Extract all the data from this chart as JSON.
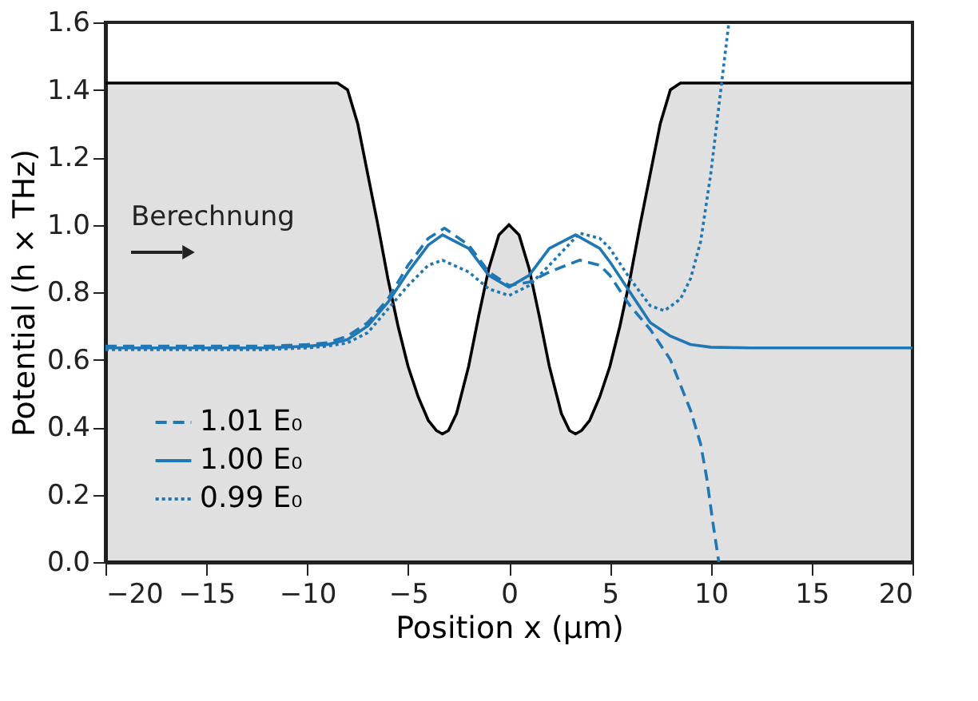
{
  "chart_data": {
    "type": "line",
    "xlabel": "Position x (µm)",
    "ylabel": "Potential (h × THz)",
    "xlim": [
      -20,
      20
    ],
    "ylim": [
      0,
      1.6
    ],
    "xticks": [
      {
        "value": -20,
        "label": "−20"
      },
      {
        "value": -15,
        "label": "−15"
      },
      {
        "value": -10,
        "label": "−10"
      },
      {
        "value": -5,
        "label": "−5"
      },
      0,
      5,
      10,
      15,
      20
    ],
    "yticks": [
      {
        "value": 0,
        "label": "0.0"
      },
      0.2,
      0.4,
      0.6,
      0.8,
      {
        "value": 1,
        "label": "1.0"
      },
      1.2,
      1.4,
      1.6
    ],
    "grid": false,
    "legend": "bottom left",
    "annotations": [
      "Berechnung"
    ],
    "series": [
      {
        "type": "area",
        "color": "#000000",
        "line_style": "solid",
        "x": [
          -20,
          -9,
          -8.5,
          -8,
          -7.5,
          -7,
          -6.5,
          -6,
          -5.5,
          -5,
          -4.5,
          -4,
          -3.6,
          -3.3,
          -3,
          -2.6,
          -2,
          -1.5,
          -1,
          -0.5,
          0,
          0.5,
          1,
          1.5,
          2,
          2.6,
          3,
          3.3,
          3.6,
          4,
          4.5,
          5,
          5.5,
          6,
          6.5,
          7,
          7.5,
          8,
          8.5,
          9,
          20
        ],
        "values": [
          1.42,
          1.42,
          1.42,
          1.4,
          1.3,
          1.15,
          1.0,
          0.84,
          0.7,
          0.58,
          0.49,
          0.42,
          0.39,
          0.38,
          0.39,
          0.44,
          0.58,
          0.73,
          0.87,
          0.97,
          1.0,
          0.97,
          0.87,
          0.73,
          0.58,
          0.44,
          0.39,
          0.38,
          0.39,
          0.42,
          0.49,
          0.58,
          0.7,
          0.84,
          1.0,
          1.15,
          1.3,
          1.4,
          1.42,
          1.42,
          1.42
        ]
      },
      {
        "name": "1.01 E₀",
        "color": "#1f77b4",
        "line_style": "dashed",
        "x": [
          -20,
          -12,
          -10,
          -9,
          -8,
          -7,
          -6,
          -5,
          -4,
          -3.2,
          -2,
          -1,
          0,
          1,
          2,
          3.5,
          4.5,
          5,
          6,
          7,
          8,
          9,
          9.5,
          9.8,
          10.1,
          10.4
        ],
        "values": [
          0.64,
          0.64,
          0.645,
          0.65,
          0.67,
          0.71,
          0.78,
          0.88,
          0.96,
          0.99,
          0.94,
          0.86,
          0.82,
          0.83,
          0.86,
          0.895,
          0.88,
          0.85,
          0.76,
          0.69,
          0.6,
          0.45,
          0.35,
          0.25,
          0.12,
          0.0
        ]
      },
      {
        "name": "1.00 E₀",
        "color": "#1f77b4",
        "line_style": "solid",
        "x": [
          -20,
          -12,
          -10,
          -9,
          -8,
          -7,
          -6,
          -5,
          -4,
          -3.3,
          -2,
          -1,
          0,
          1,
          2,
          3.3,
          4.5,
          5,
          6,
          7,
          8,
          9,
          10,
          12,
          20
        ],
        "values": [
          0.635,
          0.635,
          0.64,
          0.645,
          0.66,
          0.7,
          0.77,
          0.86,
          0.94,
          0.97,
          0.93,
          0.85,
          0.815,
          0.85,
          0.93,
          0.97,
          0.93,
          0.89,
          0.8,
          0.71,
          0.67,
          0.645,
          0.637,
          0.635,
          0.635
        ]
      },
      {
        "name": "0.99 E₀",
        "color": "#1f77b4",
        "line_style": "dotted",
        "x": [
          -20,
          -12,
          -10,
          -9,
          -8,
          -7,
          -6,
          -5,
          -4,
          -3.3,
          -2,
          -1,
          0,
          1,
          2,
          3.5,
          4.5,
          5,
          6,
          7,
          7.7,
          8.5,
          9,
          9.5,
          10,
          10.5,
          10.9
        ],
        "values": [
          0.63,
          0.63,
          0.635,
          0.64,
          0.65,
          0.68,
          0.75,
          0.82,
          0.88,
          0.895,
          0.86,
          0.81,
          0.79,
          0.82,
          0.88,
          0.975,
          0.96,
          0.93,
          0.84,
          0.76,
          0.745,
          0.78,
          0.84,
          0.95,
          1.15,
          1.4,
          1.6
        ]
      }
    ]
  }
}
